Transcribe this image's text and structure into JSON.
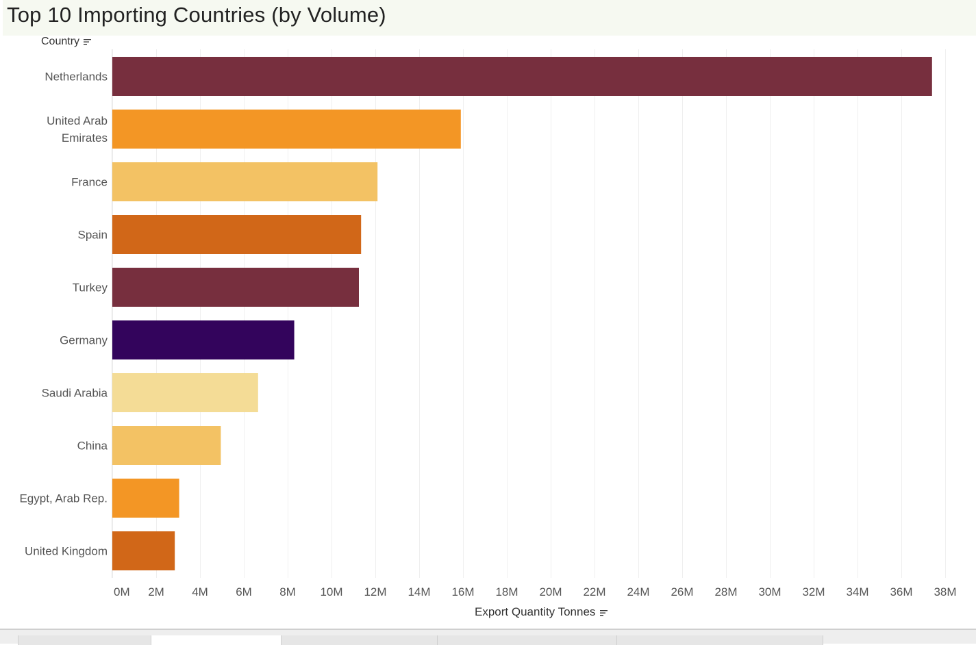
{
  "title": "Top 10 Importing Countries (by Volume)",
  "y_header": "Country",
  "x_header": "Export Quantity Tonnes",
  "chart_data": {
    "type": "bar",
    "orientation": "horizontal",
    "title": "Top 10 Importing Countries (by Volume)",
    "xlabel": "Export Quantity Tonnes",
    "ylabel": "Country",
    "xlim": [
      0,
      39000000
    ],
    "grid": true,
    "categories": [
      "Netherlands",
      "United Arab Emirates",
      "France",
      "Spain",
      "Turkey",
      "Germany",
      "Saudi Arabia",
      "China",
      "Egypt, Arab Rep.",
      "United Kingdom"
    ],
    "category_lines": [
      [
        "Netherlands"
      ],
      [
        "United Arab",
        "Emirates"
      ],
      [
        "France"
      ],
      [
        "Spain"
      ],
      [
        "Turkey"
      ],
      [
        "Germany"
      ],
      [
        "Saudi Arabia"
      ],
      [
        "China"
      ],
      [
        "Egypt, Arab Rep."
      ],
      [
        "United Kingdom"
      ]
    ],
    "values": [
      37400000,
      15900000,
      12100000,
      11350000,
      11250000,
      8300000,
      6650000,
      4950000,
      3050000,
      2850000
    ],
    "colors": [
      "#772f3e",
      "#f39625",
      "#f3c264",
      "#d16718",
      "#772f3e",
      "#33045c",
      "#f4dc96",
      "#f3c264",
      "#f39625",
      "#d16718"
    ],
    "ticks": [
      0,
      2000000,
      4000000,
      6000000,
      8000000,
      10000000,
      12000000,
      14000000,
      16000000,
      18000000,
      20000000,
      22000000,
      24000000,
      26000000,
      28000000,
      30000000,
      32000000,
      34000000,
      36000000,
      38000000
    ],
    "tick_labels": [
      "0M",
      "2M",
      "4M",
      "6M",
      "8M",
      "10M",
      "12M",
      "14M",
      "16M",
      "18M",
      "20M",
      "22M",
      "24M",
      "26M",
      "28M",
      "30M",
      "32M",
      "34M",
      "36M",
      "38M"
    ]
  }
}
